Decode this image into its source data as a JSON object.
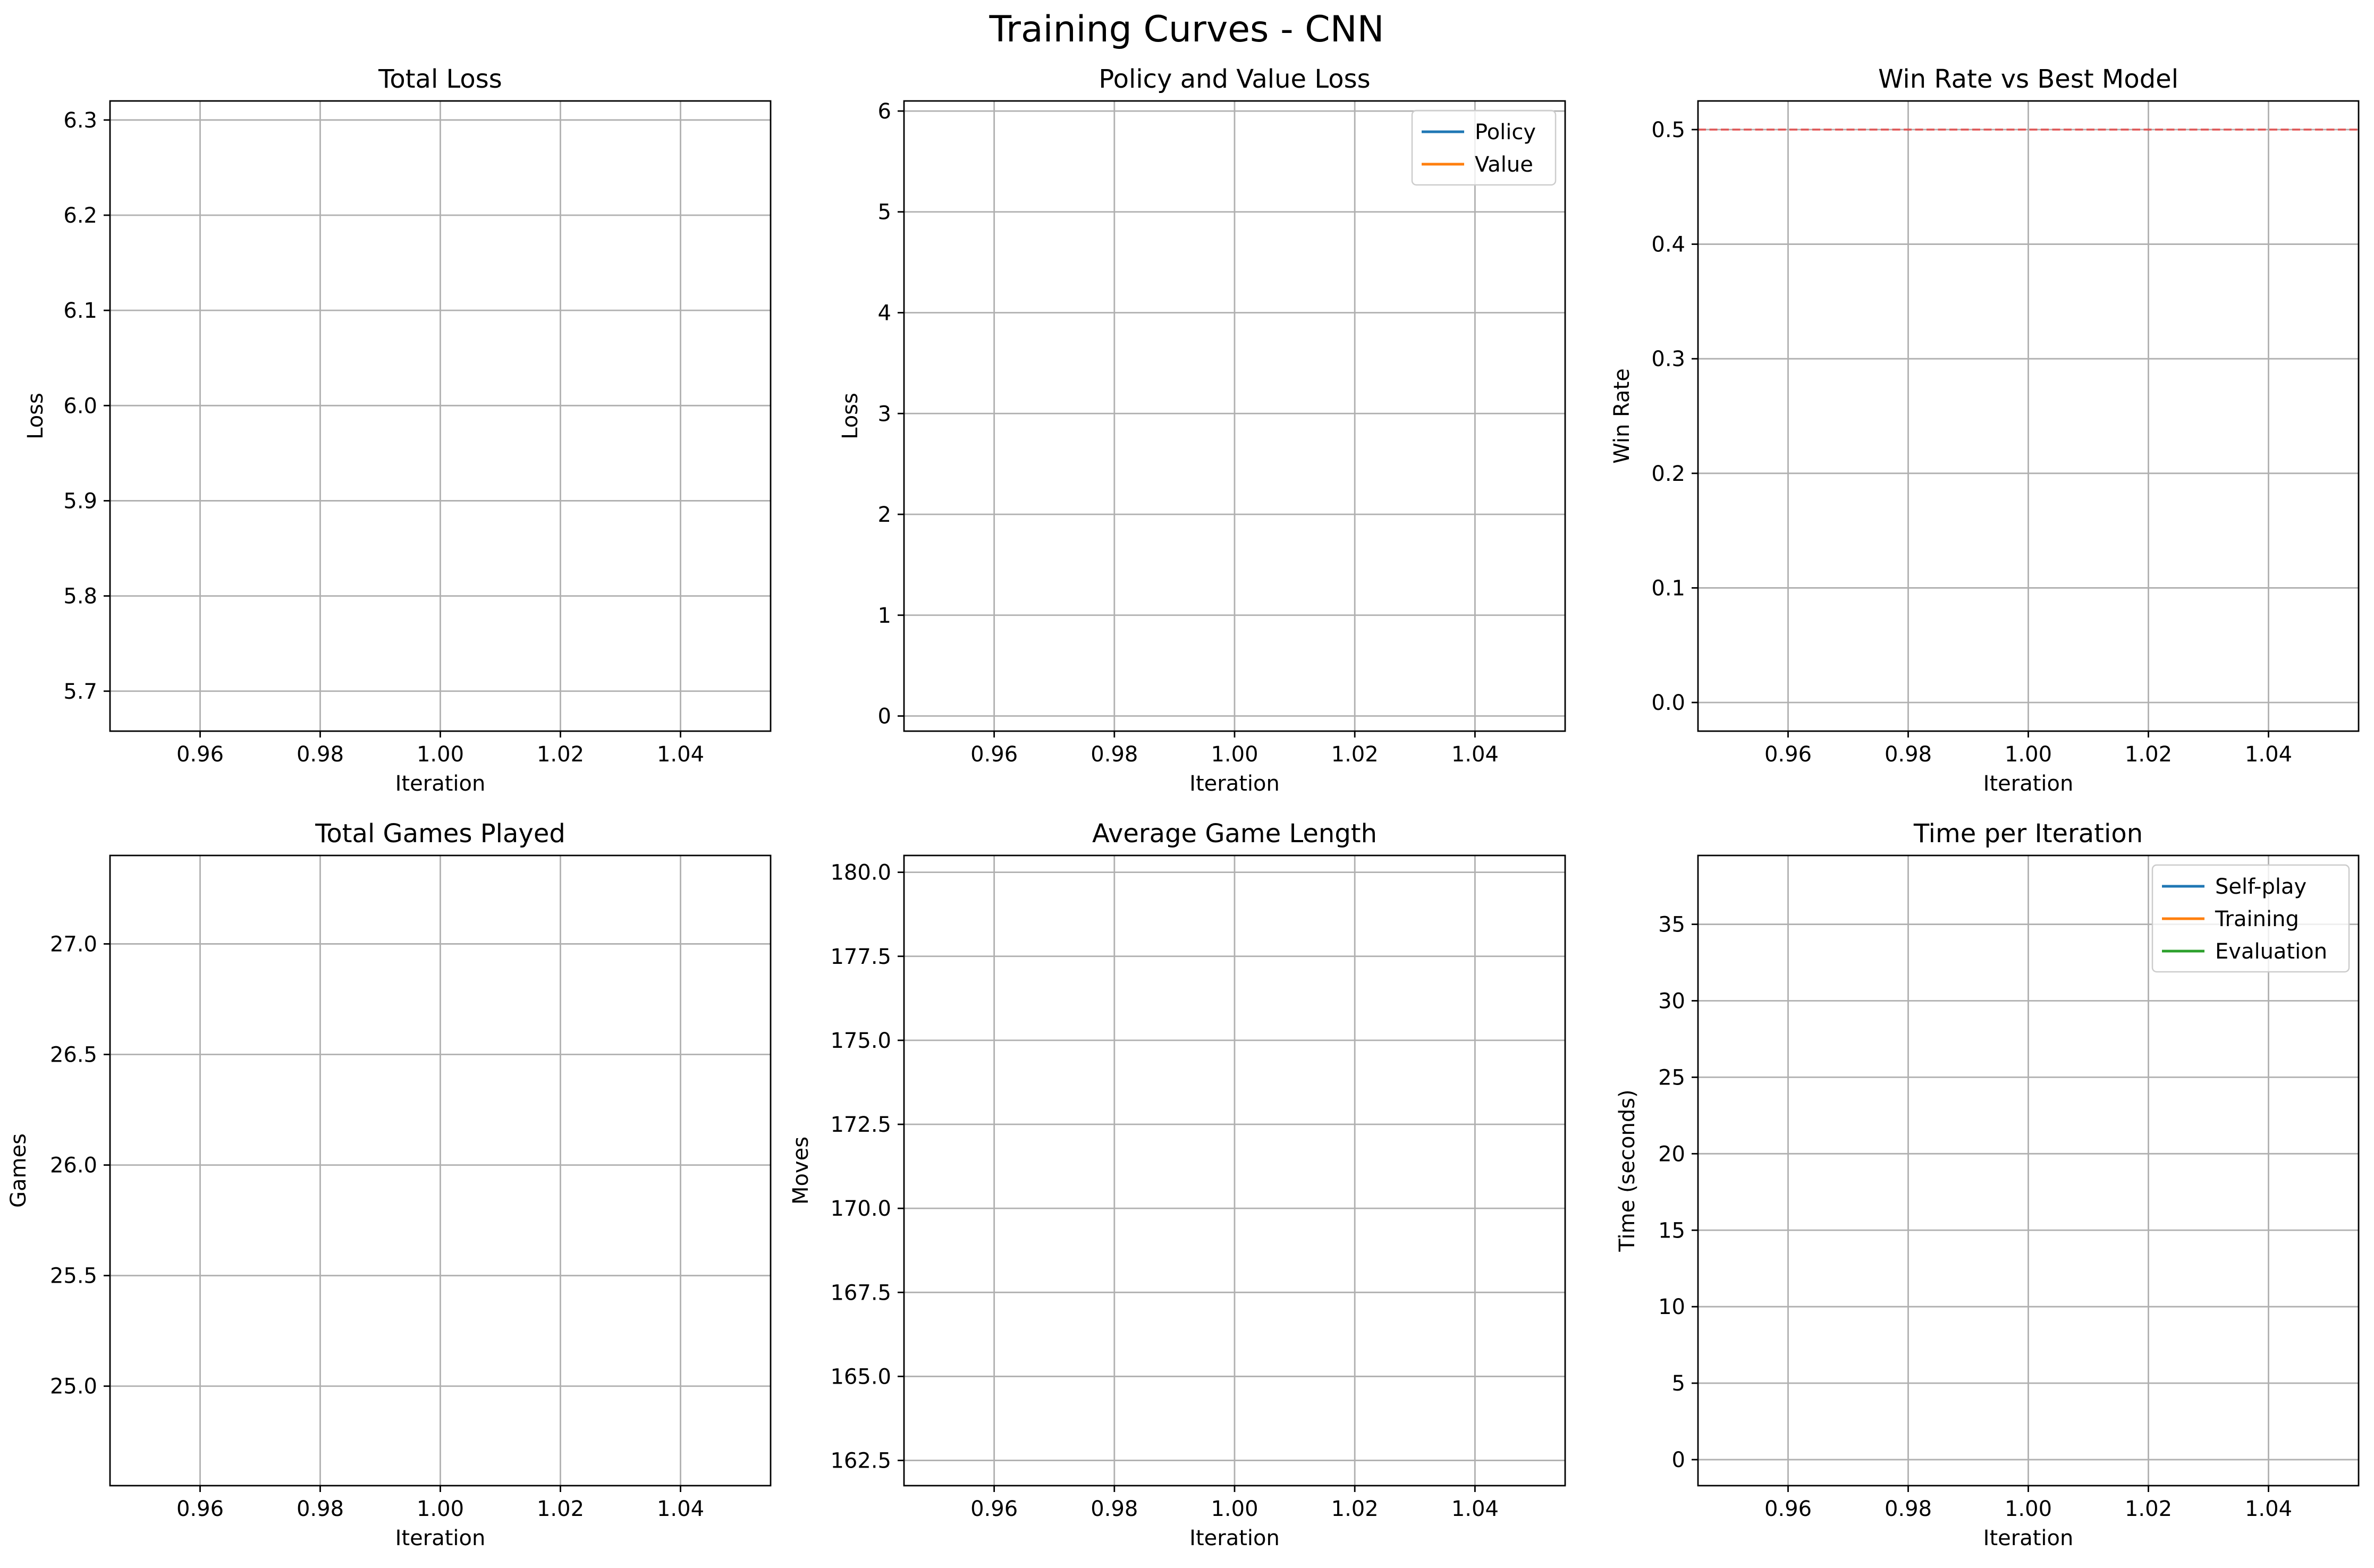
{
  "figure": {
    "title": "Training Curves - CNN"
  },
  "chart_data": [
    {
      "type": "line",
      "title": "Total Loss",
      "xlabel": "Iteration",
      "ylabel": "Loss",
      "xlim": [
        0.945,
        1.055
      ],
      "ylim": [
        5.658,
        6.32
      ],
      "xticks": [
        "0.96",
        "0.98",
        "1.00",
        "1.02",
        "1.04"
      ],
      "xtick_values": [
        0.96,
        0.98,
        1.0,
        1.02,
        1.04
      ],
      "yticks": [
        "5.7",
        "5.8",
        "5.9",
        "6.0",
        "6.1",
        "6.2",
        "6.3"
      ],
      "ytick_values": [
        5.7,
        5.8,
        5.9,
        6.0,
        6.1,
        6.2,
        6.3
      ],
      "grid": true,
      "series": [],
      "legend": null
    },
    {
      "type": "line",
      "title": "Policy and Value Loss",
      "xlabel": "Iteration",
      "ylabel": "Loss",
      "xlim": [
        0.945,
        1.055
      ],
      "ylim": [
        -0.15,
        6.1
      ],
      "xticks": [
        "0.96",
        "0.98",
        "1.00",
        "1.02",
        "1.04"
      ],
      "xtick_values": [
        0.96,
        0.98,
        1.0,
        1.02,
        1.04
      ],
      "yticks": [
        "0",
        "1",
        "2",
        "3",
        "4",
        "5",
        "6"
      ],
      "ytick_values": [
        0,
        1,
        2,
        3,
        4,
        5,
        6
      ],
      "grid": true,
      "series": [
        {
          "name": "Policy",
          "color": "#1f77b4",
          "x": [],
          "y": []
        },
        {
          "name": "Value",
          "color": "#ff7f0e",
          "x": [],
          "y": []
        }
      ],
      "legend": "top-right"
    },
    {
      "type": "line",
      "title": "Win Rate vs Best Model",
      "xlabel": "Iteration",
      "ylabel": "Win Rate",
      "xlim": [
        0.945,
        1.055
      ],
      "ylim": [
        -0.025,
        0.525
      ],
      "xticks": [
        "0.96",
        "0.98",
        "1.00",
        "1.02",
        "1.04"
      ],
      "xtick_values": [
        0.96,
        0.98,
        1.0,
        1.02,
        1.04
      ],
      "yticks": [
        "0.0",
        "0.1",
        "0.2",
        "0.3",
        "0.4",
        "0.5"
      ],
      "ytick_values": [
        0.0,
        0.1,
        0.2,
        0.3,
        0.4,
        0.5
      ],
      "grid": true,
      "series": [],
      "hlines": [
        {
          "y": 0.5,
          "color": "#ff0000",
          "style": "dashed",
          "alpha": 0.5
        }
      ],
      "legend": null
    },
    {
      "type": "line",
      "title": "Total Games Played",
      "xlabel": "Iteration",
      "ylabel": "Games",
      "xlim": [
        0.945,
        1.055
      ],
      "ylim": [
        24.55,
        27.4
      ],
      "xticks": [
        "0.96",
        "0.98",
        "1.00",
        "1.02",
        "1.04"
      ],
      "xtick_values": [
        0.96,
        0.98,
        1.0,
        1.02,
        1.04
      ],
      "yticks": [
        "25.0",
        "25.5",
        "26.0",
        "26.5",
        "27.0"
      ],
      "ytick_values": [
        25.0,
        25.5,
        26.0,
        26.5,
        27.0
      ],
      "grid": true,
      "series": [],
      "legend": null
    },
    {
      "type": "line",
      "title": "Average Game Length",
      "xlabel": "Iteration",
      "ylabel": "Moves",
      "xlim": [
        0.945,
        1.055
      ],
      "ylim": [
        161.75,
        180.5
      ],
      "xticks": [
        "0.96",
        "0.98",
        "1.00",
        "1.02",
        "1.04"
      ],
      "xtick_values": [
        0.96,
        0.98,
        1.0,
        1.02,
        1.04
      ],
      "yticks": [
        "162.5",
        "165.0",
        "167.5",
        "170.0",
        "172.5",
        "175.0",
        "177.5",
        "180.0"
      ],
      "ytick_values": [
        162.5,
        165.0,
        167.5,
        170.0,
        172.5,
        175.0,
        177.5,
        180.0
      ],
      "grid": true,
      "series": [],
      "legend": null
    },
    {
      "type": "line",
      "title": "Time per Iteration",
      "xlabel": "Iteration",
      "ylabel": "Time (seconds)",
      "xlim": [
        0.945,
        1.055
      ],
      "ylim": [
        -1.7,
        39.5
      ],
      "xticks": [
        "0.96",
        "0.98",
        "1.00",
        "1.02",
        "1.04"
      ],
      "xtick_values": [
        0.96,
        0.98,
        1.0,
        1.02,
        1.04
      ],
      "yticks": [
        "0",
        "5",
        "10",
        "15",
        "20",
        "25",
        "30",
        "35"
      ],
      "ytick_values": [
        0,
        5,
        10,
        15,
        20,
        25,
        30,
        35
      ],
      "grid": true,
      "series": [
        {
          "name": "Self-play",
          "color": "#1f77b4",
          "x": [],
          "y": []
        },
        {
          "name": "Training",
          "color": "#ff7f0e",
          "x": [],
          "y": []
        },
        {
          "name": "Evaluation",
          "color": "#2ca02c",
          "x": [],
          "y": []
        }
      ],
      "legend": "top-right"
    }
  ]
}
